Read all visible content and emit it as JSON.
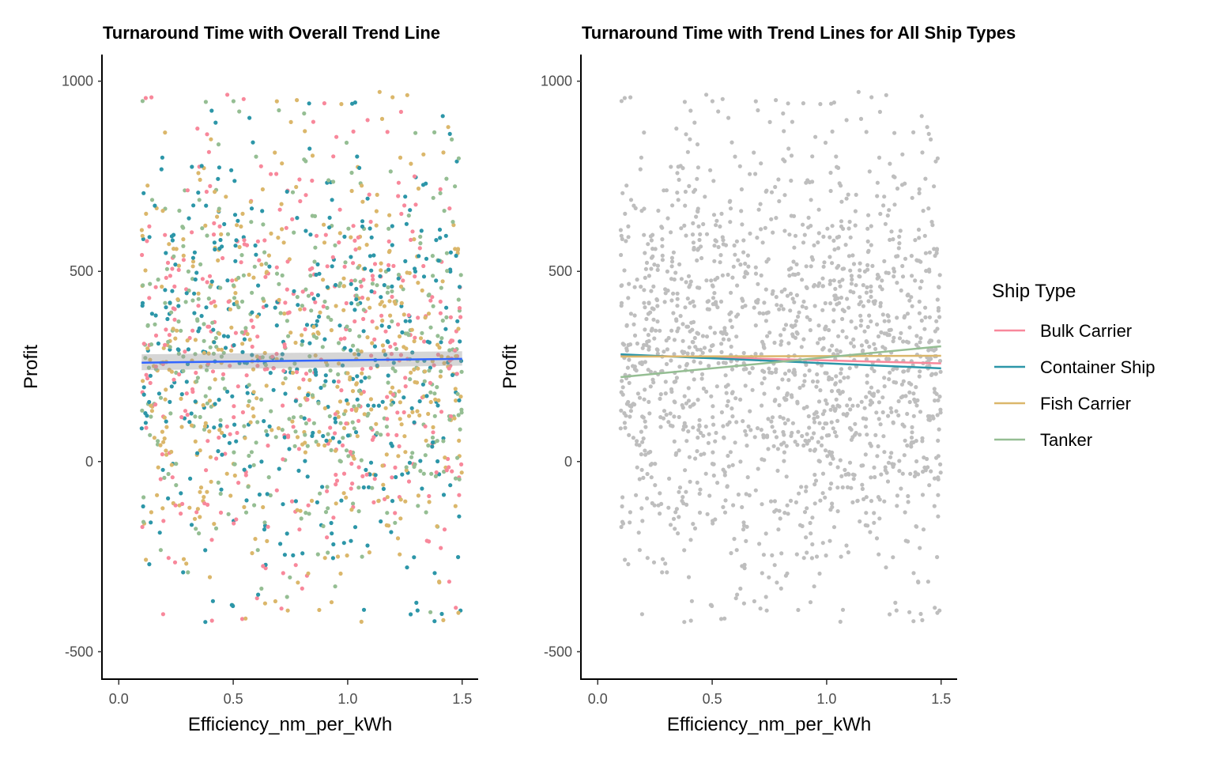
{
  "chart_data": [
    {
      "type": "scatter",
      "title": "Turnaround Time with Overall Trend Line",
      "xlabel": "Efficiency_nm_per_kWh",
      "ylabel": "Profit",
      "xlim": [
        -0.07,
        1.57
      ],
      "ylim": [
        -570,
        1070
      ],
      "x_ticks": [
        "0.0",
        "0.5",
        "1.0",
        "1.5"
      ],
      "x_tick_values": [
        0,
        0.5,
        1.0,
        1.5
      ],
      "y_ticks": [
        "-500",
        "0",
        "500",
        "1000"
      ],
      "y_tick_values": [
        -500,
        0,
        500,
        1000
      ],
      "points_colored_by": "Ship Type",
      "approx_point_count": 1600,
      "x_range_points": [
        0.1,
        1.5
      ],
      "y_range_points": [
        -425,
        975
      ],
      "trend_line": {
        "color": "#3366ff",
        "x": [
          0.1,
          1.5
        ],
        "y": [
          260,
          270
        ],
        "ci_band": {
          "lower": [
            240,
            252
          ],
          "upper": [
            282,
            290
          ]
        }
      }
    },
    {
      "type": "scatter",
      "title": "Turnaround Time with Trend Lines for All Ship Types",
      "xlabel": "Efficiency_nm_per_kWh",
      "ylabel": "Profit",
      "xlim": [
        -0.07,
        1.57
      ],
      "ylim": [
        -570,
        1070
      ],
      "x_ticks": [
        "0.0",
        "0.5",
        "1.0",
        "1.5"
      ],
      "x_tick_values": [
        0,
        0.5,
        1.0,
        1.5
      ],
      "y_ticks": [
        "-500",
        "0",
        "500",
        "1000"
      ],
      "y_tick_values": [
        -500,
        0,
        500,
        1000
      ],
      "point_color": "#bebebe",
      "legend": {
        "title": "Ship Type",
        "position": "right"
      },
      "series": [
        {
          "name": "Bulk Carrier",
          "color": "#f8889b",
          "x": [
            0.1,
            1.5
          ],
          "y": [
            280,
            258
          ]
        },
        {
          "name": "Container Ship",
          "color": "#2c96a8",
          "x": [
            0.1,
            1.5
          ],
          "y": [
            282,
            245
          ]
        },
        {
          "name": "Fish Carrier",
          "color": "#dbb76b",
          "x": [
            0.1,
            1.5
          ],
          "y": [
            276,
            278
          ]
        },
        {
          "name": "Tanker",
          "color": "#95be93",
          "x": [
            0.1,
            1.5
          ],
          "y": [
            222,
            303
          ]
        }
      ]
    }
  ]
}
